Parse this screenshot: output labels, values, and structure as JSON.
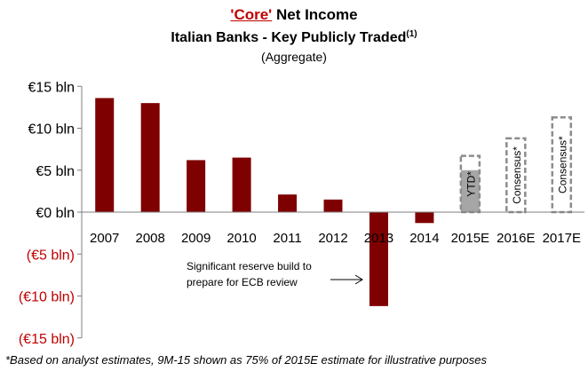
{
  "title": {
    "highlight": "'Core'",
    "rest": " Net Income",
    "subtitle": "Italian Banks - Key Publicly Traded",
    "subtitle_sup": "(1)",
    "note": "(Aggregate)"
  },
  "footnote": "*Based on analyst estimates, 9M-15 shown as 75% of 2015E estimate for illustrative purposes",
  "annotation": {
    "line1": "Significant reserve build to",
    "line2": "prepare for ECB review"
  },
  "colors": {
    "bar": "#7f0000",
    "negative_label": "#c00000",
    "estimate_border": "#8c8c8c",
    "ytd_fill": "#a6a6a6"
  },
  "chart_data": {
    "type": "bar",
    "categories": [
      "2007",
      "2008",
      "2009",
      "2010",
      "2011",
      "2012",
      "2013",
      "2014",
      "2015E",
      "2016E",
      "2017E"
    ],
    "values": [
      13.6,
      13.0,
      6.2,
      6.5,
      2.1,
      1.5,
      -11.2,
      -1.3,
      null,
      null,
      null
    ],
    "estimates": [
      {
        "category": "2015E",
        "label": "YTD*",
        "value": 6.7,
        "ytd_value": 5.0
      },
      {
        "category": "2016E",
        "label": "Consensus*",
        "value": 8.8
      },
      {
        "category": "2017E",
        "label": "Consensus*",
        "value": 11.3
      }
    ],
    "y_ticks": [
      {
        "value": 15,
        "label": "€15 bln"
      },
      {
        "value": 10,
        "label": "€10 bln"
      },
      {
        "value": 5,
        "label": "€5 bln"
      },
      {
        "value": 0,
        "label": "€0 bln"
      },
      {
        "value": -5,
        "label": "(€5 bln)"
      },
      {
        "value": -10,
        "label": "(€10 bln)"
      },
      {
        "value": -15,
        "label": "(€15 bln)"
      }
    ],
    "ylim": [
      -15,
      15
    ],
    "grid": false
  }
}
